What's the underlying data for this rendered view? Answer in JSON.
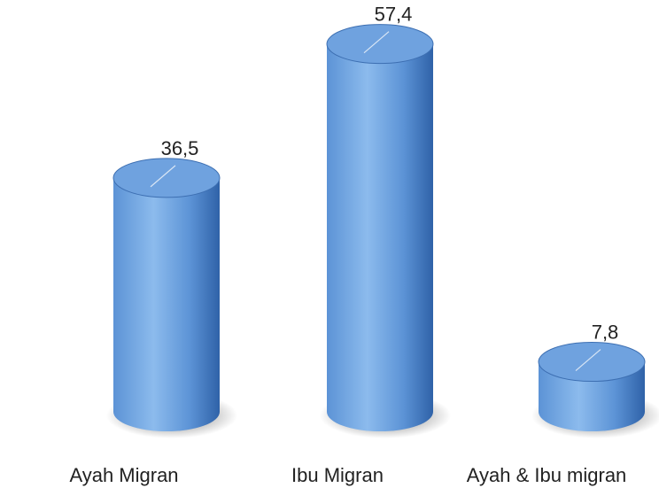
{
  "chart_data": {
    "type": "bar",
    "style": "3d-cylinder",
    "categories": [
      "Ayah Migran",
      "Ibu Migran",
      "Ayah & Ibu migran"
    ],
    "values": [
      36.5,
      57.4,
      7.8
    ],
    "value_labels": [
      "36,5",
      "57,4",
      "7,8"
    ],
    "title": "",
    "xlabel": "",
    "ylabel": "",
    "grid": false,
    "legend": "none",
    "colors": {
      "bar_light": "#8cbbed",
      "bar_mid": "#5c93d6",
      "bar_dark": "#2f62a8",
      "top_fill": "#6fa2df",
      "top_edge": "#3d6fb2",
      "shadow": "#555555",
      "label_text": "#222222"
    }
  }
}
